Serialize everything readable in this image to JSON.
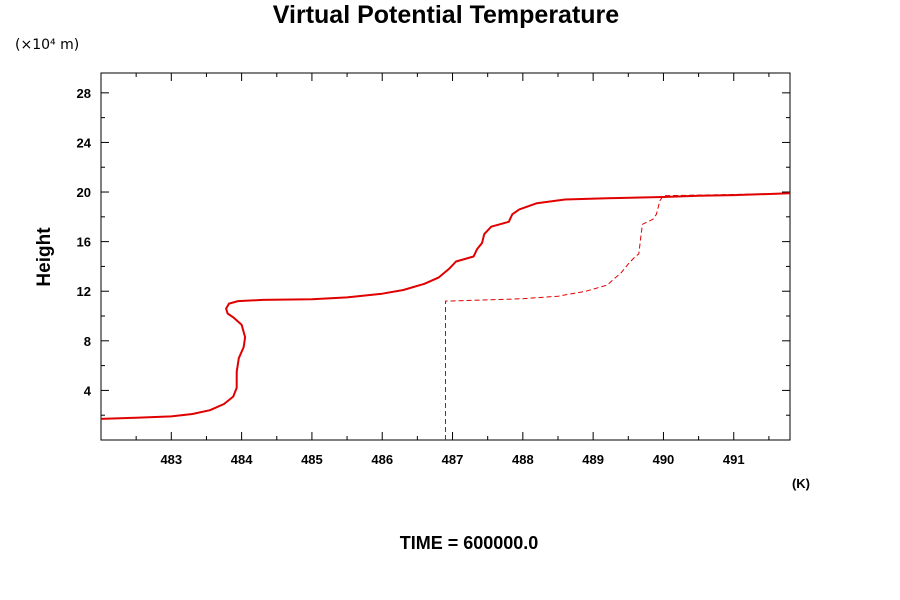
{
  "chart_data": {
    "type": "line",
    "title": "Virtual Potential Temperature",
    "y_unit_label": "(×10⁴ m)",
    "ylabel": "Height",
    "x_unit_label": "(K)",
    "footer": "TIME = 600000.0",
    "xlim": [
      482.0,
      491.8
    ],
    "ylim": [
      0.0,
      29.6
    ],
    "x_ticks": [
      483,
      484,
      485,
      486,
      487,
      488,
      489,
      490,
      491
    ],
    "y_ticks": [
      4,
      8,
      12,
      16,
      20,
      24,
      28
    ],
    "grid": false,
    "line_color": "#e00000",
    "series": [
      {
        "style": "solid",
        "points": [
          [
            482.0,
            1.7
          ],
          [
            482.5,
            1.8
          ],
          [
            483.0,
            1.9
          ],
          [
            483.3,
            2.1
          ],
          [
            483.55,
            2.4
          ],
          [
            483.75,
            2.9
          ],
          [
            483.88,
            3.5
          ],
          [
            483.93,
            4.2
          ],
          [
            483.93,
            5.5
          ],
          [
            483.96,
            6.6
          ],
          [
            484.03,
            7.5
          ],
          [
            484.05,
            8.3
          ],
          [
            484.0,
            9.3
          ],
          [
            483.88,
            9.9
          ],
          [
            483.8,
            10.2
          ],
          [
            483.78,
            10.6
          ],
          [
            483.82,
            11.0
          ],
          [
            483.95,
            11.2
          ],
          [
            484.3,
            11.3
          ],
          [
            485.0,
            11.35
          ],
          [
            485.5,
            11.5
          ],
          [
            486.0,
            11.8
          ],
          [
            486.3,
            12.1
          ],
          [
            486.6,
            12.6
          ],
          [
            486.8,
            13.1
          ],
          [
            486.95,
            13.8
          ],
          [
            487.05,
            14.4
          ],
          [
            487.3,
            14.8
          ],
          [
            487.35,
            15.4
          ],
          [
            487.42,
            15.9
          ],
          [
            487.45,
            16.6
          ],
          [
            487.55,
            17.2
          ],
          [
            487.8,
            17.6
          ],
          [
            487.85,
            18.2
          ],
          [
            487.95,
            18.6
          ],
          [
            488.2,
            19.1
          ],
          [
            488.6,
            19.4
          ],
          [
            489.2,
            19.5
          ],
          [
            490.0,
            19.6
          ],
          [
            490.5,
            19.7
          ],
          [
            491.0,
            19.75
          ],
          [
            491.8,
            19.9
          ]
        ]
      },
      {
        "style": "dashed",
        "points": [
          [
            486.9,
            0.0
          ],
          [
            486.9,
            11.2
          ],
          [
            487.5,
            11.3
          ],
          [
            488.0,
            11.4
          ],
          [
            488.5,
            11.6
          ],
          [
            488.9,
            12.0
          ],
          [
            489.2,
            12.5
          ],
          [
            489.4,
            13.5
          ],
          [
            489.5,
            14.2
          ],
          [
            489.6,
            14.8
          ],
          [
            489.65,
            15.0
          ],
          [
            489.68,
            16.5
          ],
          [
            489.7,
            17.4
          ],
          [
            489.85,
            17.8
          ],
          [
            489.9,
            18.2
          ],
          [
            489.95,
            19.3
          ],
          [
            490.0,
            19.7
          ],
          [
            490.5,
            19.75
          ],
          [
            491.0,
            19.8
          ],
          [
            491.8,
            19.9
          ]
        ]
      }
    ]
  }
}
